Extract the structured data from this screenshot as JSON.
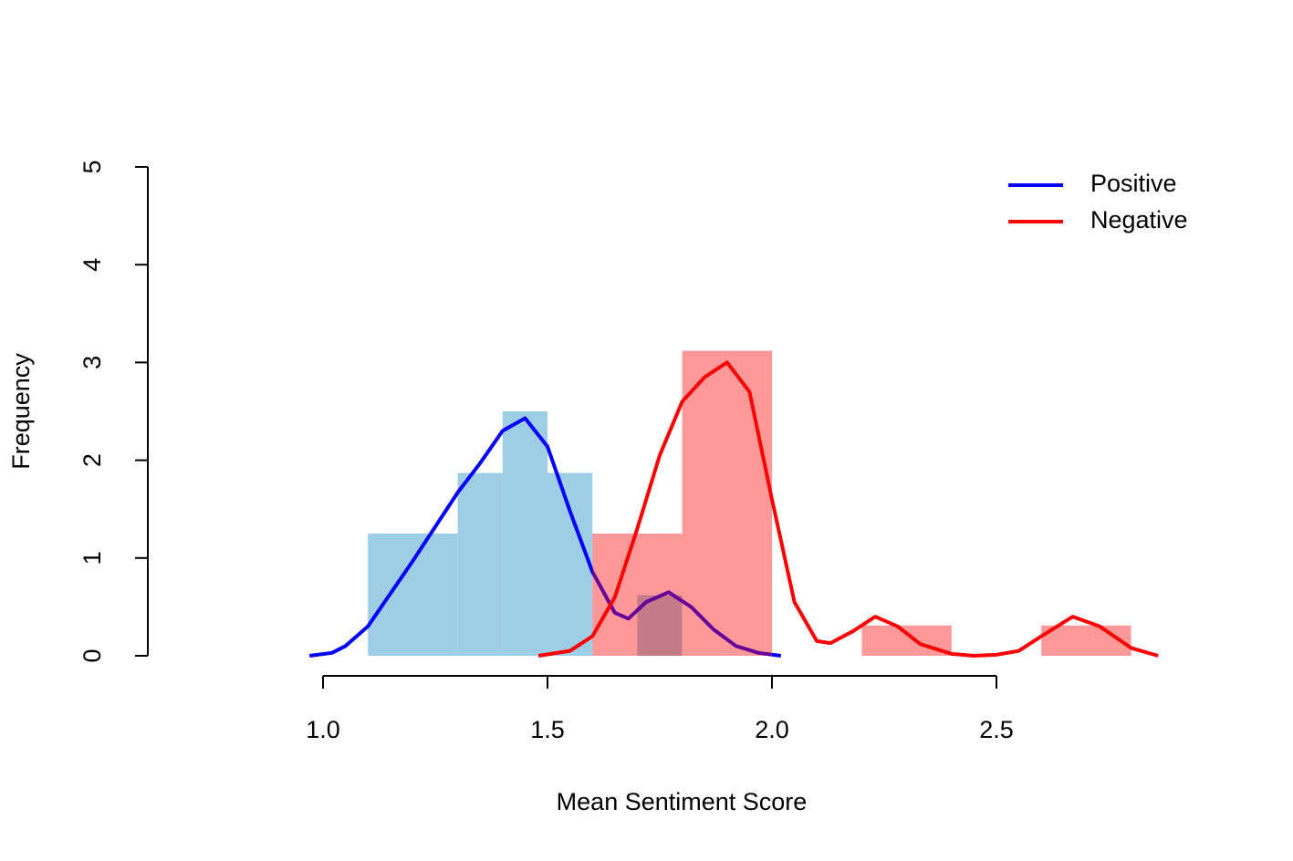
{
  "chart_data": {
    "type": "histogram",
    "xlabel": "Mean Sentiment Score",
    "ylabel": "Frequency",
    "xlim": [
      0.6,
      2.9
    ],
    "ylim": [
      0,
      5
    ],
    "xticks": [
      {
        "value": 1,
        "label": "1.0"
      },
      1.5,
      {
        "value": 2,
        "label": "2.0"
      },
      2.5
    ],
    "yticks": [
      0,
      1,
      2,
      3,
      4,
      5
    ],
    "legend": "top-right",
    "series": [
      {
        "name": "Positive",
        "color": "#0000ff",
        "hist_color": "#9dcee5",
        "hist_alpha": 1,
        "bins": [
          1.1,
          1.3,
          1.4,
          1.5,
          1.6,
          1.7,
          1.8
        ],
        "counts": [
          1.25,
          1.87,
          2.5,
          1.87,
          0,
          0.62
        ],
        "density_x": [
          0.97,
          1.02,
          1.05,
          1.1,
          1.2,
          1.3,
          1.35,
          1.4,
          1.45,
          1.5,
          1.55,
          1.6,
          1.65,
          1.68,
          1.72,
          1.77,
          1.82,
          1.87,
          1.92,
          1.97,
          2.02
        ],
        "density": [
          0,
          0.03,
          0.1,
          0.3,
          0.97,
          1.67,
          1.97,
          2.3,
          2.43,
          2.14,
          1.48,
          0.86,
          0.44,
          0.38,
          0.55,
          0.65,
          0.5,
          0.27,
          0.1,
          0.03,
          0
        ]
      },
      {
        "name": "Negative",
        "color": "#ff0000",
        "hist_color": "#ff0000",
        "hist_alpha": 0.4,
        "bins": [
          1.6,
          1.8,
          2.0,
          2.2,
          2.4,
          2.6,
          2.8
        ],
        "counts": [
          1.25,
          3.12,
          0,
          0.31,
          0,
          0.31
        ],
        "density_x": [
          1.48,
          1.55,
          1.6,
          1.65,
          1.7,
          1.75,
          1.8,
          1.85,
          1.9,
          1.95,
          2.0,
          2.05,
          2.1,
          2.13,
          2.18,
          2.23,
          2.28,
          2.33,
          2.4,
          2.45,
          2.5,
          2.55,
          2.6,
          2.67,
          2.73,
          2.8,
          2.86
        ],
        "density": [
          0,
          0.05,
          0.2,
          0.6,
          1.3,
          2.05,
          2.6,
          2.85,
          3.0,
          2.7,
          1.6,
          0.55,
          0.15,
          0.13,
          0.25,
          0.4,
          0.3,
          0.12,
          0.02,
          0,
          0.01,
          0.05,
          0.2,
          0.4,
          0.3,
          0.08,
          0
        ]
      }
    ]
  }
}
